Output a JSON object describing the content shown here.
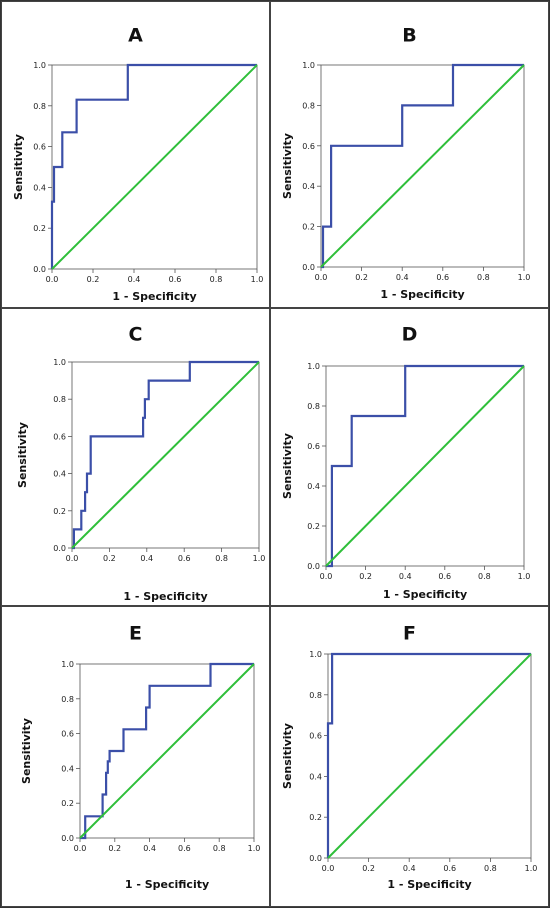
{
  "chart_data": [
    {
      "type": "line",
      "panel_label": "A",
      "xlabel": "1 - Specificity",
      "ylabel": "Sensitivity",
      "xlim": [
        0,
        1
      ],
      "ylim": [
        0,
        1
      ],
      "xticks": [
        "0.0",
        "0.2",
        "0.4",
        "0.6",
        "0.8",
        "1.0"
      ],
      "yticks": [
        "0.0",
        "0.2",
        "0.4",
        "0.6",
        "0.8",
        "1.0"
      ],
      "series": [
        {
          "role": "roc",
          "color": "#3b4fa8",
          "x": [
            0,
            0,
            0.01,
            0.01,
            0.05,
            0.05,
            0.12,
            0.12,
            0.37,
            0.37,
            1.0
          ],
          "y": [
            0,
            0.33,
            0.33,
            0.5,
            0.5,
            0.67,
            0.67,
            0.83,
            0.83,
            1.0,
            1.0
          ]
        },
        {
          "role": "reference",
          "color": "#2fbf3a",
          "x": [
            0,
            1
          ],
          "y": [
            0,
            1
          ]
        }
      ]
    },
    {
      "type": "line",
      "panel_label": "B",
      "xlabel": "1 - Specificity",
      "ylabel": "Sensitivity",
      "xlim": [
        0,
        1
      ],
      "ylim": [
        0,
        1
      ],
      "xticks": [
        "0.0",
        "0.2",
        "0.4",
        "0.6",
        "0.8",
        "1.0"
      ],
      "yticks": [
        "0.0",
        "0.2",
        "0.4",
        "0.6",
        "0.8",
        "1.0"
      ],
      "series": [
        {
          "role": "roc",
          "color": "#3b4fa8",
          "x": [
            0,
            0.01,
            0.01,
            0.05,
            0.05,
            0.4,
            0.4,
            0.65,
            0.65,
            1.0
          ],
          "y": [
            0,
            0,
            0.2,
            0.2,
            0.6,
            0.6,
            0.8,
            0.8,
            1.0,
            1.0
          ]
        },
        {
          "role": "reference",
          "color": "#2fbf3a",
          "x": [
            0,
            1
          ],
          "y": [
            0,
            1
          ]
        }
      ]
    },
    {
      "type": "line",
      "panel_label": "C",
      "xlabel": "1 - Specificity",
      "ylabel": "Sensitivity",
      "xlim": [
        0,
        1
      ],
      "ylim": [
        0,
        1
      ],
      "xticks": [
        "0.0",
        "0.2",
        "0.4",
        "0.6",
        "0.8",
        "1.0"
      ],
      "yticks": [
        "0.0",
        "0.2",
        "0.4",
        "0.6",
        "0.8",
        "1.0"
      ],
      "series": [
        {
          "role": "roc",
          "color": "#3b4fa8",
          "x": [
            0,
            0.01,
            0.01,
            0.05,
            0.05,
            0.07,
            0.07,
            0.08,
            0.08,
            0.1,
            0.1,
            0.38,
            0.38,
            0.39,
            0.39,
            0.41,
            0.41,
            0.63,
            0.63,
            1.0
          ],
          "y": [
            0,
            0,
            0.1,
            0.1,
            0.2,
            0.2,
            0.3,
            0.3,
            0.4,
            0.4,
            0.6,
            0.6,
            0.7,
            0.7,
            0.8,
            0.8,
            0.9,
            0.9,
            1.0,
            1.0
          ]
        },
        {
          "role": "reference",
          "color": "#2fbf3a",
          "x": [
            0,
            1
          ],
          "y": [
            0,
            1
          ]
        }
      ]
    },
    {
      "type": "line",
      "panel_label": "D",
      "xlabel": "1 - Specificity",
      "ylabel": "Sensitivity",
      "xlim": [
        0,
        1
      ],
      "ylim": [
        0,
        1
      ],
      "xticks": [
        "0.0",
        "0.2",
        "0.4",
        "0.6",
        "0.8",
        "1.0"
      ],
      "yticks": [
        "0.0",
        "0.2",
        "0.4",
        "0.6",
        "0.8",
        "1.0"
      ],
      "series": [
        {
          "role": "roc",
          "color": "#3b4fa8",
          "x": [
            0,
            0.03,
            0.03,
            0.13,
            0.13,
            0.4,
            0.4,
            1.0
          ],
          "y": [
            0,
            0,
            0.5,
            0.5,
            0.75,
            0.75,
            1.0,
            1.0
          ]
        },
        {
          "role": "reference",
          "color": "#2fbf3a",
          "x": [
            0,
            1
          ],
          "y": [
            0,
            1
          ]
        }
      ]
    },
    {
      "type": "line",
      "panel_label": "E",
      "xlabel": "1 - Specificity",
      "ylabel": "Sensitivity",
      "xlim": [
        0,
        1
      ],
      "ylim": [
        0,
        1
      ],
      "xticks": [
        "0.0",
        "0.2",
        "0.4",
        "0.6",
        "0.8",
        "1.0"
      ],
      "yticks": [
        "0.0",
        "0.2",
        "0.4",
        "0.6",
        "0.8",
        "1.0"
      ],
      "series": [
        {
          "role": "roc",
          "color": "#3b4fa8",
          "x": [
            0,
            0.03,
            0.03,
            0.13,
            0.13,
            0.15,
            0.15,
            0.16,
            0.16,
            0.17,
            0.17,
            0.25,
            0.25,
            0.38,
            0.38,
            0.4,
            0.4,
            0.75,
            0.75,
            1.0
          ],
          "y": [
            0,
            0,
            0.125,
            0.125,
            0.25,
            0.25,
            0.375,
            0.375,
            0.44,
            0.44,
            0.5,
            0.5,
            0.625,
            0.625,
            0.75,
            0.75,
            0.875,
            0.875,
            1.0,
            1.0
          ]
        },
        {
          "role": "reference",
          "color": "#2fbf3a",
          "x": [
            0,
            1
          ],
          "y": [
            0,
            1
          ]
        }
      ]
    },
    {
      "type": "line",
      "panel_label": "F",
      "xlabel": "1 - Specificity",
      "ylabel": "Sensitivity",
      "xlim": [
        0,
        1
      ],
      "ylim": [
        0,
        1
      ],
      "xticks": [
        "0.0",
        "0.2",
        "0.4",
        "0.6",
        "0.8",
        "1.0"
      ],
      "yticks": [
        "0.0",
        "0.2",
        "0.4",
        "0.6",
        "0.8",
        "1.0"
      ],
      "series": [
        {
          "role": "roc",
          "color": "#3b4fa8",
          "x": [
            0,
            0,
            0.01,
            0.01,
            0.02,
            0.02,
            1.0
          ],
          "y": [
            0,
            0.66,
            0.66,
            0.66,
            0.66,
            1.0,
            1.0
          ]
        },
        {
          "role": "reference",
          "color": "#2fbf3a",
          "x": [
            0,
            1
          ],
          "y": [
            0,
            1
          ]
        }
      ]
    }
  ]
}
